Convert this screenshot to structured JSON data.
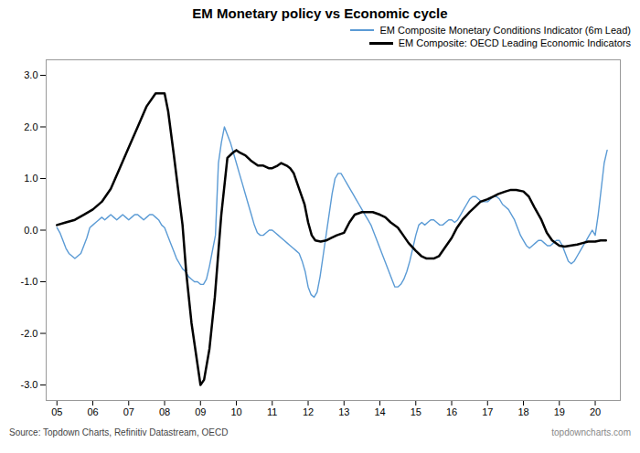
{
  "chart_data": {
    "type": "line",
    "title": "EM Monetary policy vs Economic cycle",
    "annotations": [
      "Source: Topdown Charts, Refinitiv Datastream, OECD",
      "topdowncharts.com"
    ],
    "legend": "upper right",
    "grid": false,
    "xlim": [
      2004.7,
      2020.7
    ],
    "xticks": [
      {
        "value": 2005,
        "label": "05"
      },
      {
        "value": 2006,
        "label": "06"
      },
      {
        "value": 2007,
        "label": "07"
      },
      {
        "value": 2008,
        "label": "08"
      },
      {
        "value": 2009,
        "label": "09"
      },
      {
        "value": 2010,
        "label": "10"
      },
      {
        "value": 2011,
        "label": "11"
      },
      {
        "value": 2012,
        "label": "12"
      },
      {
        "value": 2013,
        "label": "13"
      },
      {
        "value": 2014,
        "label": "14"
      },
      {
        "value": 2015,
        "label": "15"
      },
      {
        "value": 2016,
        "label": "16"
      },
      {
        "value": 2017,
        "label": "17"
      },
      {
        "value": 2018,
        "label": "18"
      },
      {
        "value": 2019,
        "label": "19"
      },
      {
        "value": 2020,
        "label": "20"
      }
    ],
    "ylim": [
      -3.3,
      3.3
    ],
    "yticks": [
      {
        "value": -3.0,
        "label": "-3.0"
      },
      {
        "value": -2.0,
        "label": "-2.0"
      },
      {
        "value": -1.0,
        "label": "-1.0"
      },
      {
        "value": 0.0,
        "label": "0.0"
      },
      {
        "value": 1.0,
        "label": "1.0"
      },
      {
        "value": 2.0,
        "label": "2.0"
      },
      {
        "value": 3.0,
        "label": "3.0"
      }
    ],
    "series": [
      {
        "name": "EM Composite Monetary Conditions Indicator (6m Lead)",
        "color": "#5b9bd5",
        "x": [
          2005.0,
          2005.083,
          2005.167,
          2005.25,
          2005.333,
          2005.417,
          2005.5,
          2005.583,
          2005.667,
          2005.75,
          2005.833,
          2005.917,
          2006.0,
          2006.083,
          2006.167,
          2006.25,
          2006.333,
          2006.417,
          2006.5,
          2006.583,
          2006.667,
          2006.75,
          2006.833,
          2006.917,
          2007.0,
          2007.083,
          2007.167,
          2007.25,
          2007.333,
          2007.417,
          2007.5,
          2007.583,
          2007.667,
          2007.75,
          2007.833,
          2007.917,
          2008.0,
          2008.083,
          2008.167,
          2008.25,
          2008.333,
          2008.417,
          2008.5,
          2008.583,
          2008.667,
          2008.75,
          2008.833,
          2008.917,
          2009.0,
          2009.083,
          2009.167,
          2009.25,
          2009.333,
          2009.417,
          2009.5,
          2009.583,
          2009.667,
          2009.75,
          2009.833,
          2009.917,
          2010.0,
          2010.083,
          2010.167,
          2010.25,
          2010.333,
          2010.417,
          2010.5,
          2010.583,
          2010.667,
          2010.75,
          2010.833,
          2010.917,
          2011.0,
          2011.083,
          2011.167,
          2011.25,
          2011.333,
          2011.417,
          2011.5,
          2011.583,
          2011.667,
          2011.75,
          2011.833,
          2011.917,
          2012.0,
          2012.083,
          2012.167,
          2012.25,
          2012.333,
          2012.417,
          2012.5,
          2012.583,
          2012.667,
          2012.75,
          2012.833,
          2012.917,
          2013.0,
          2013.083,
          2013.167,
          2013.25,
          2013.333,
          2013.417,
          2013.5,
          2013.583,
          2013.667,
          2013.75,
          2013.833,
          2013.917,
          2014.0,
          2014.083,
          2014.167,
          2014.25,
          2014.333,
          2014.417,
          2014.5,
          2014.583,
          2014.667,
          2014.75,
          2014.833,
          2014.917,
          2015.0,
          2015.083,
          2015.167,
          2015.25,
          2015.333,
          2015.417,
          2015.5,
          2015.583,
          2015.667,
          2015.75,
          2015.833,
          2015.917,
          2016.0,
          2016.083,
          2016.167,
          2016.25,
          2016.333,
          2016.417,
          2016.5,
          2016.583,
          2016.667,
          2016.75,
          2016.833,
          2016.917,
          2017.0,
          2017.083,
          2017.167,
          2017.25,
          2017.333,
          2017.417,
          2017.5,
          2017.583,
          2017.667,
          2017.75,
          2017.833,
          2017.917,
          2018.0,
          2018.083,
          2018.167,
          2018.25,
          2018.333,
          2018.417,
          2018.5,
          2018.583,
          2018.667,
          2018.75,
          2018.833,
          2018.917,
          2019.0,
          2019.083,
          2019.167,
          2019.25,
          2019.333,
          2019.417,
          2019.5,
          2019.583,
          2019.667,
          2019.75,
          2019.833,
          2019.917,
          2020.0,
          2020.083,
          2020.167,
          2020.25,
          2020.333
        ],
        "values": [
          0.05,
          -0.05,
          -0.2,
          -0.35,
          -0.45,
          -0.5,
          -0.55,
          -0.5,
          -0.45,
          -0.3,
          -0.15,
          0.05,
          0.1,
          0.15,
          0.2,
          0.25,
          0.2,
          0.25,
          0.3,
          0.25,
          0.2,
          0.25,
          0.3,
          0.25,
          0.2,
          0.25,
          0.3,
          0.3,
          0.25,
          0.2,
          0.25,
          0.3,
          0.3,
          0.25,
          0.2,
          0.1,
          0.05,
          -0.1,
          -0.25,
          -0.4,
          -0.55,
          -0.65,
          -0.75,
          -0.8,
          -0.9,
          -0.95,
          -1.0,
          -1.0,
          -1.05,
          -1.05,
          -0.95,
          -0.7,
          -0.4,
          -0.1,
          1.3,
          1.7,
          2.0,
          1.85,
          1.7,
          1.5,
          1.3,
          1.1,
          0.9,
          0.7,
          0.5,
          0.3,
          0.1,
          -0.05,
          -0.1,
          -0.1,
          -0.05,
          0.0,
          0.0,
          -0.05,
          -0.1,
          -0.15,
          -0.2,
          -0.25,
          -0.3,
          -0.35,
          -0.4,
          -0.45,
          -0.6,
          -0.8,
          -1.1,
          -1.25,
          -1.3,
          -1.2,
          -0.9,
          -0.5,
          -0.1,
          0.3,
          0.7,
          1.0,
          1.1,
          1.1,
          1.0,
          0.9,
          0.8,
          0.7,
          0.6,
          0.5,
          0.4,
          0.3,
          0.2,
          0.1,
          -0.05,
          -0.2,
          -0.35,
          -0.5,
          -0.65,
          -0.8,
          -0.95,
          -1.1,
          -1.1,
          -1.05,
          -0.95,
          -0.8,
          -0.6,
          -0.35,
          -0.1,
          0.1,
          0.15,
          0.1,
          0.15,
          0.2,
          0.2,
          0.15,
          0.1,
          0.1,
          0.15,
          0.2,
          0.2,
          0.15,
          0.2,
          0.3,
          0.4,
          0.5,
          0.6,
          0.65,
          0.65,
          0.6,
          0.55,
          0.55,
          0.55,
          0.6,
          0.65,
          0.65,
          0.6,
          0.5,
          0.45,
          0.4,
          0.3,
          0.2,
          0.05,
          -0.1,
          -0.2,
          -0.3,
          -0.35,
          -0.3,
          -0.25,
          -0.2,
          -0.2,
          -0.25,
          -0.3,
          -0.3,
          -0.25,
          -0.2,
          -0.2,
          -0.3,
          -0.45,
          -0.6,
          -0.65,
          -0.6,
          -0.5,
          -0.4,
          -0.3,
          -0.2,
          -0.1,
          0.0,
          -0.1,
          0.3,
          0.8,
          1.3,
          1.55
        ]
      },
      {
        "name": "EM Composite: OECD Leading Economic Indicators",
        "color": "#000000",
        "x": [
          2005.0,
          2005.25,
          2005.5,
          2005.75,
          2006.0,
          2006.25,
          2006.5,
          2006.75,
          2007.0,
          2007.25,
          2007.5,
          2007.75,
          2008.0,
          2008.1,
          2008.25,
          2008.5,
          2008.6,
          2008.75,
          2009.0,
          2009.1,
          2009.25,
          2009.4,
          2009.58,
          2009.75,
          2009.9,
          2010.0,
          2010.1,
          2010.25,
          2010.4,
          2010.5,
          2010.6,
          2010.75,
          2010.9,
          2011.0,
          2011.15,
          2011.25,
          2011.4,
          2011.5,
          2011.6,
          2011.75,
          2011.9,
          2012.0,
          2012.1,
          2012.2,
          2012.35,
          2012.5,
          2012.65,
          2012.8,
          2013.0,
          2013.15,
          2013.3,
          2013.5,
          2013.65,
          2013.8,
          2014.0,
          2014.15,
          2014.3,
          2014.5,
          2014.65,
          2014.8,
          2015.0,
          2015.15,
          2015.3,
          2015.5,
          2015.65,
          2015.8,
          2016.0,
          2016.15,
          2016.3,
          2016.5,
          2016.65,
          2016.8,
          2017.0,
          2017.15,
          2017.3,
          2017.5,
          2017.65,
          2017.8,
          2018.0,
          2018.15,
          2018.3,
          2018.5,
          2018.65,
          2018.8,
          2019.0,
          2019.15,
          2019.3,
          2019.5,
          2019.65,
          2019.8,
          2020.0,
          2020.15,
          2020.3
        ],
        "values": [
          0.1,
          0.15,
          0.2,
          0.3,
          0.4,
          0.55,
          0.8,
          1.2,
          1.6,
          2.0,
          2.4,
          2.65,
          2.65,
          2.3,
          1.5,
          0.1,
          -0.8,
          -1.8,
          -3.0,
          -2.9,
          -2.3,
          -1.3,
          0.3,
          1.4,
          1.5,
          1.55,
          1.5,
          1.45,
          1.35,
          1.3,
          1.25,
          1.25,
          1.2,
          1.2,
          1.25,
          1.3,
          1.25,
          1.2,
          1.1,
          0.8,
          0.5,
          0.15,
          -0.1,
          -0.2,
          -0.22,
          -0.2,
          -0.15,
          -0.1,
          -0.05,
          0.15,
          0.3,
          0.35,
          0.35,
          0.35,
          0.3,
          0.25,
          0.15,
          0.05,
          -0.1,
          -0.25,
          -0.4,
          -0.5,
          -0.55,
          -0.55,
          -0.5,
          -0.35,
          -0.15,
          0.05,
          0.2,
          0.35,
          0.45,
          0.55,
          0.6,
          0.65,
          0.7,
          0.75,
          0.78,
          0.78,
          0.75,
          0.65,
          0.45,
          0.2,
          -0.05,
          -0.2,
          -0.3,
          -0.32,
          -0.3,
          -0.28,
          -0.25,
          -0.22,
          -0.22,
          -0.2,
          -0.2
        ]
      }
    ]
  }
}
